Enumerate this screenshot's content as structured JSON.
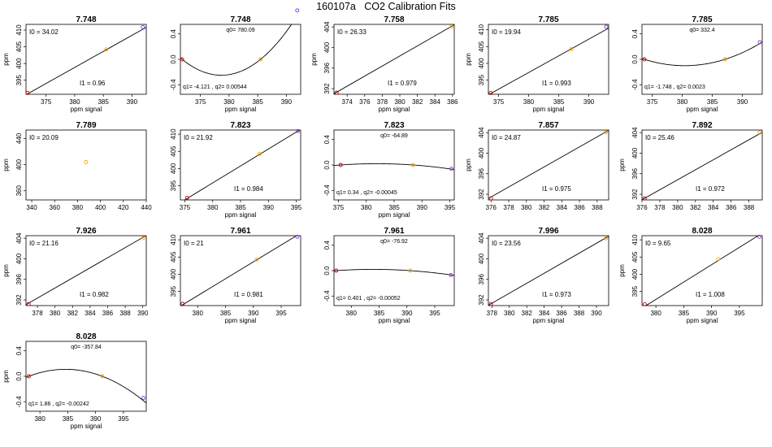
{
  "title": "160107a   CO2 Calibration Fits",
  "colors": {
    "p0": "#cc0000",
    "p1": "#ffa500",
    "p2": "#8a2be2",
    "line": "#000000"
  },
  "chart_data": [
    {
      "type": "line",
      "title": "7.748",
      "xlabel": "ppm signal",
      "ylabel": "ppm",
      "xlim": [
        371.5,
        392.5
      ],
      "ylim": [
        390.8,
        411.7
      ],
      "xticks": [
        375,
        380,
        385,
        390
      ],
      "yticks": [
        395,
        400,
        405,
        410
      ],
      "ann1": "I0 =  34.02",
      "ann2": "I1 =  0.96",
      "points": [
        [
          371.8,
          391.2
        ],
        [
          385.5,
          404.2
        ],
        [
          391.9,
          410.9
        ]
      ],
      "curve": {
        "kind": "line",
        "a": 34.02,
        "b": 0.96
      }
    },
    {
      "type": "line",
      "title": "7.748",
      "xlabel": "ppm signal",
      "ylabel": "",
      "xlim": [
        371.5,
        392.5
      ],
      "ylim": [
        -0.55,
        0.55
      ],
      "xticks": [
        375,
        380,
        385,
        390
      ],
      "yticks": [
        -0.4,
        0.0,
        0.4
      ],
      "ann1": "q0= 780.09",
      "ann2": "q1= -4.121 , q2= 0.00544",
      "points": [
        [
          371.8,
          0.0
        ],
        [
          385.5,
          0.0
        ],
        [
          391.9,
          0.77
        ]
      ],
      "curve": {
        "kind": "quad",
        "xs": [
          371.8,
          385.5
        ],
        "vertex": [
          378.6,
          -0.25
        ]
      }
    },
    {
      "type": "line",
      "title": "7.758",
      "xlabel": "ppm signal",
      "ylabel": "ppm",
      "xlim": [
        372.5,
        386.2
      ],
      "ylim": [
        390.9,
        404.5
      ],
      "xticks": [
        374,
        376,
        378,
        380,
        382,
        384,
        386
      ],
      "yticks": [
        392,
        396,
        400,
        404
      ],
      "ann1": "I0 =  26.33",
      "ann2": "I1 =  0.979",
      "points": [
        [
          372.8,
          391.2
        ],
        [
          385.9,
          404.1
        ]
      ],
      "curve": {
        "kind": "line",
        "a": 26.33,
        "b": 0.979
      }
    },
    {
      "type": "line",
      "title": "7.785",
      "xlabel": "ppm signal",
      "ylabel": "ppm",
      "xlim": [
        373.3,
        393.3
      ],
      "ylim": [
        390.8,
        411.6
      ],
      "xticks": [
        375,
        380,
        385,
        390
      ],
      "yticks": [
        395,
        400,
        405,
        410
      ],
      "ann1": "I0 =  19.94",
      "ann2": "I1 =  0.993",
      "points": [
        [
          373.7,
          391.2
        ],
        [
          387.1,
          404.2
        ],
        [
          392.9,
          410.9
        ]
      ],
      "curve": {
        "kind": "line",
        "a": 19.94,
        "b": 0.993
      }
    },
    {
      "type": "line",
      "title": "7.785",
      "xlabel": "ppm signal",
      "ylabel": "",
      "xlim": [
        373.3,
        393.3
      ],
      "ylim": [
        -0.55,
        0.55
      ],
      "xticks": [
        375,
        380,
        385,
        390
      ],
      "yticks": [
        -0.4,
        0.0,
        0.4
      ],
      "ann1": "q0= 332.4",
      "ann2": "q1= -1.748 , q2= 0.0023",
      "points": [
        [
          373.7,
          0.0
        ],
        [
          387.1,
          0.0
        ],
        [
          392.9,
          0.27
        ]
      ],
      "curve": {
        "kind": "quad",
        "xs": [
          373.7,
          387.1
        ],
        "vertex": [
          380.4,
          -0.1
        ]
      }
    },
    {
      "type": "scatter",
      "title": "7.789",
      "xlabel": "",
      "ylabel": "ppm",
      "xlim": [
        335,
        440
      ],
      "ylim": [
        346,
        453
      ],
      "xticks": [
        340,
        360,
        380,
        400,
        420,
        440
      ],
      "yticks": [
        360,
        400,
        440
      ],
      "ann1": "I0 =  20.09",
      "ann2": "",
      "points": [
        [
          387.4,
          404.0
        ]
      ],
      "curve": {
        "kind": "none"
      }
    },
    {
      "type": "line",
      "title": "7.823",
      "xlabel": "ppm signal",
      "ylabel": "",
      "xlim": [
        374.2,
        395.8
      ],
      "ylim": [
        390.9,
        411.2
      ],
      "xticks": [
        375,
        380,
        385,
        390,
        395
      ],
      "yticks": [
        395,
        400,
        405,
        410
      ],
      "ann1": "I0 =  21.92",
      "ann2": "I1 =  0.984",
      "points": [
        [
          375.4,
          391.5
        ],
        [
          388.4,
          404.3
        ],
        [
          395.3,
          410.9
        ]
      ],
      "curve": {
        "kind": "line",
        "a": 21.92,
        "b": 0.984
      }
    },
    {
      "type": "line",
      "title": "7.823",
      "xlabel": "ppm signal",
      "ylabel": "",
      "xlim": [
        374.2,
        395.8
      ],
      "ylim": [
        -0.55,
        0.55
      ],
      "xticks": [
        375,
        380,
        385,
        390,
        395
      ],
      "yticks": [
        -0.4,
        0.0,
        0.4
      ],
      "ann1": "q0= -64.89",
      "ann2": "q1= 0.34 , q2= -0.00045",
      "points": [
        [
          375.4,
          0.0
        ],
        [
          388.4,
          0.0
        ],
        [
          395.3,
          -0.06
        ]
      ],
      "curve": {
        "kind": "quad",
        "xs": [
          375.4,
          388.4
        ],
        "vertex": [
          381.9,
          0.02
        ]
      }
    },
    {
      "type": "line",
      "title": "7.857",
      "xlabel": "",
      "ylabel": "ppm",
      "xlim": [
        375.7,
        389.3
      ],
      "ylim": [
        390.9,
        404.5
      ],
      "xticks": [
        376,
        378,
        380,
        382,
        384,
        386,
        388
      ],
      "yticks": [
        392,
        396,
        400,
        404
      ],
      "ann1": "I0 =  24.87",
      "ann2": "I1 =  0.975",
      "points": [
        [
          376.0,
          391.2
        ],
        [
          389.0,
          404.1
        ]
      ],
      "curve": {
        "kind": "line",
        "a": 24.87,
        "b": 0.975
      }
    },
    {
      "type": "line",
      "title": "7.892",
      "xlabel": "",
      "ylabel": "ppm",
      "xlim": [
        376.0,
        389.5
      ],
      "ylim": [
        390.9,
        404.5
      ],
      "xticks": [
        376,
        378,
        380,
        382,
        384,
        386,
        388
      ],
      "yticks": [
        392,
        396,
        400,
        404
      ],
      "ann1": "I0 =  25.46",
      "ann2": "I1 =  0.972",
      "points": [
        [
          376.3,
          391.2
        ],
        [
          389.2,
          404.0
        ]
      ],
      "curve": {
        "kind": "line",
        "a": 25.46,
        "b": 0.972
      }
    },
    {
      "type": "line",
      "title": "7.926",
      "xlabel": "",
      "ylabel": "ppm",
      "xlim": [
        376.7,
        390.4
      ],
      "ylim": [
        390.9,
        404.5
      ],
      "xticks": [
        378,
        380,
        382,
        384,
        386,
        388,
        390
      ],
      "yticks": [
        392,
        396,
        400,
        404
      ],
      "ann1": "I0 =  21.16",
      "ann2": "I1 =  0.982",
      "points": [
        [
          377.0,
          391.2
        ],
        [
          390.1,
          404.1
        ]
      ],
      "curve": {
        "kind": "line",
        "a": 21.16,
        "b": 0.982
      }
    },
    {
      "type": "line",
      "title": "7.961",
      "xlabel": "ppm signal",
      "ylabel": "",
      "xlim": [
        376.9,
        398.5
      ],
      "ylim": [
        390.9,
        411.2
      ],
      "xticks": [
        380,
        385,
        390,
        395
      ],
      "yticks": [
        395,
        400,
        405,
        410
      ],
      "ann1": "I0 =  21",
      "ann2": "I1 =  0.981",
      "points": [
        [
          377.3,
          391.4
        ],
        [
          390.6,
          404.3
        ],
        [
          397.9,
          410.9
        ]
      ],
      "curve": {
        "kind": "line",
        "a": 21.0,
        "b": 0.981
      }
    },
    {
      "type": "line",
      "title": "7.961",
      "xlabel": "ppm signal",
      "ylabel": "",
      "xlim": [
        376.9,
        398.5
      ],
      "ylim": [
        -0.55,
        0.55
      ],
      "xticks": [
        380,
        385,
        390,
        395
      ],
      "yticks": [
        -0.4,
        0.0,
        0.4
      ],
      "ann1": "q0= -76.92",
      "ann2": "q1= 0.401 , q2= -0.00052",
      "points": [
        [
          377.3,
          0.0
        ],
        [
          390.6,
          0.0
        ],
        [
          397.9,
          -0.07
        ]
      ],
      "curve": {
        "kind": "quad",
        "xs": [
          377.3,
          390.6
        ],
        "vertex": [
          383.9,
          0.02
        ]
      }
    },
    {
      "type": "line",
      "title": "7.996",
      "xlabel": "ppm signal",
      "ylabel": "",
      "xlim": [
        377.6,
        391.4
      ],
      "ylim": [
        390.9,
        404.5
      ],
      "xticks": [
        378,
        380,
        382,
        384,
        386,
        388,
        390
      ],
      "yticks": [
        392,
        396,
        400,
        404
      ],
      "ann1": "I0 =  23.56",
      "ann2": "I1 =  0.973",
      "points": [
        [
          377.9,
          391.2
        ],
        [
          391.1,
          404.0
        ]
      ],
      "curve": {
        "kind": "line",
        "a": 23.56,
        "b": 0.973
      }
    },
    {
      "type": "line",
      "title": "8.028",
      "xlabel": "ppm signal",
      "ylabel": "ppm",
      "xlim": [
        377.5,
        399.1
      ],
      "ylim": [
        390.9,
        411.2
      ],
      "xticks": [
        380,
        385,
        390,
        395
      ],
      "yticks": [
        395,
        400,
        405,
        410
      ],
      "ann1": "I0 =  9.65",
      "ann2": "I1 =  1.008",
      "points": [
        [
          378.0,
          391.3
        ],
        [
          391.2,
          404.4
        ],
        [
          398.6,
          410.9
        ]
      ],
      "curve": {
        "kind": "line",
        "a": 9.65,
        "b": 1.008
      }
    },
    {
      "type": "line",
      "title": "8.028",
      "xlabel": "ppm signal",
      "ylabel": "ppm",
      "xlim": [
        377.5,
        399.1
      ],
      "ylim": [
        -0.55,
        0.55
      ],
      "xticks": [
        380,
        385,
        390,
        395
      ],
      "yticks": [
        -0.4,
        0.0,
        0.4
      ],
      "ann1": "q0= -357.84",
      "ann2": "q1= 1.86 , q2= -0.00242",
      "points": [
        [
          378.0,
          0.0
        ],
        [
          391.2,
          0.0
        ],
        [
          398.6,
          -0.34
        ]
      ],
      "curve": {
        "kind": "quad",
        "xs": [
          378.0,
          391.2
        ],
        "vertex": [
          384.6,
          0.11
        ]
      }
    }
  ]
}
